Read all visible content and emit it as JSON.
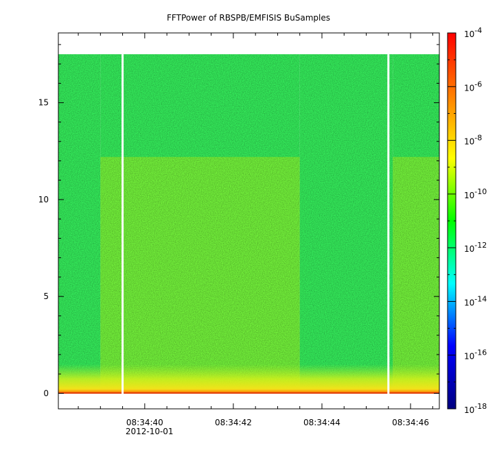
{
  "chart_data": {
    "type": "heatmap",
    "title": "FFTPower of RBSPB/EMFISIS  BuSamples",
    "xlabel": "",
    "ylabel": "",
    "x_axis": {
      "kind": "time",
      "ticks": [
        "08:34:40",
        "08:34:42",
        "08:34:44",
        "08:34:46"
      ],
      "tick_seconds": [
        40,
        42,
        44,
        46
      ],
      "date_label": "2012-10-01",
      "xlim_seconds": [
        38.05,
        46.65
      ]
    },
    "y_axis": {
      "ticks": [
        "0",
        "5",
        "10",
        "15"
      ],
      "tick_values": [
        0,
        5,
        10,
        15
      ],
      "ylim": [
        -0.8,
        18.6
      ],
      "data_max": 17.5
    },
    "colorbar": {
      "scale": "log",
      "range": [
        1e-18,
        0.0001
      ],
      "tick_exponents": [
        -4,
        -6,
        -8,
        -10,
        -12,
        -14,
        -16,
        -18
      ],
      "tick_labels": [
        "10^-4",
        "10^-6",
        "10^-8",
        "10^-10",
        "10^-12",
        "10^-14",
        "10^-16",
        "10^-18"
      ],
      "colormap": [
        "#00007f",
        "#0000ff",
        "#00ffff",
        "#00ff00",
        "#ffff00",
        "#ff7f00",
        "#ff0000"
      ]
    },
    "regions": [
      {
        "t_start": 38.05,
        "t_end": 39.0,
        "f_max": 17.5,
        "level": "background"
      },
      {
        "t_start": 39.0,
        "t_end": 43.5,
        "f_max": 12.2,
        "level": "enhanced"
      },
      {
        "t_start": 43.5,
        "t_end": 45.6,
        "f_max": 17.5,
        "level": "background"
      },
      {
        "t_start": 45.6,
        "t_end": 46.65,
        "f_max": 12.2,
        "level": "enhanced"
      }
    ],
    "data_gaps_seconds": [
      39.5,
      45.5
    ]
  }
}
